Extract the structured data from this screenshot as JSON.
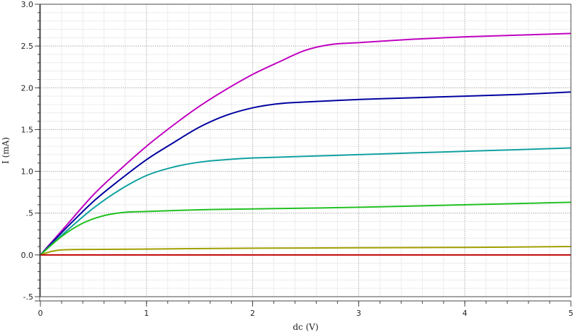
{
  "chart_data": {
    "type": "line",
    "title": "",
    "xlabel": "dc (V)",
    "ylabel": "I (mA)",
    "xlim": [
      0,
      5
    ],
    "ylim": [
      -0.5,
      3.0
    ],
    "grid": true,
    "x_ticks": [
      0,
      1,
      2,
      3,
      4,
      5
    ],
    "x_tick_labels": [
      "0",
      "1",
      "2",
      "3",
      "4",
      "5"
    ],
    "y_ticks": [
      -0.5,
      0.0,
      0.5,
      1.0,
      1.5,
      2.0,
      2.5,
      3.0
    ],
    "y_tick_labels": [
      "-.5",
      "0.0",
      ".5",
      "1.0",
      "1.5",
      "2.0",
      "2.5",
      "3.0"
    ],
    "series": [
      {
        "color": "#c000c0",
        "points": [
          [
            0,
            0
          ],
          [
            0.25,
            0.36
          ],
          [
            0.5,
            0.72
          ],
          [
            0.75,
            1.02
          ],
          [
            1.0,
            1.3
          ],
          [
            1.25,
            1.55
          ],
          [
            1.5,
            1.78
          ],
          [
            1.75,
            1.98
          ],
          [
            2.0,
            2.16
          ],
          [
            2.25,
            2.31
          ],
          [
            2.5,
            2.45
          ],
          [
            2.75,
            2.52
          ],
          [
            3.0,
            2.54
          ],
          [
            3.5,
            2.58
          ],
          [
            4.0,
            2.61
          ],
          [
            4.5,
            2.63
          ],
          [
            5.0,
            2.65
          ]
        ]
      },
      {
        "color": "#0000a0",
        "points": [
          [
            0,
            0
          ],
          [
            0.25,
            0.33
          ],
          [
            0.5,
            0.64
          ],
          [
            0.75,
            0.9
          ],
          [
            1.0,
            1.14
          ],
          [
            1.25,
            1.34
          ],
          [
            1.5,
            1.53
          ],
          [
            1.75,
            1.67
          ],
          [
            2.0,
            1.76
          ],
          [
            2.25,
            1.81
          ],
          [
            2.5,
            1.83
          ],
          [
            3.0,
            1.86
          ],
          [
            3.5,
            1.88
          ],
          [
            4.0,
            1.9
          ],
          [
            4.5,
            1.92
          ],
          [
            5.0,
            1.95
          ]
        ]
      },
      {
        "color": "#10a0a0",
        "points": [
          [
            0,
            0
          ],
          [
            0.25,
            0.29
          ],
          [
            0.5,
            0.56
          ],
          [
            0.75,
            0.78
          ],
          [
            1.0,
            0.95
          ],
          [
            1.25,
            1.05
          ],
          [
            1.5,
            1.11
          ],
          [
            1.75,
            1.14
          ],
          [
            2.0,
            1.16
          ],
          [
            2.5,
            1.18
          ],
          [
            3.0,
            1.2
          ],
          [
            3.5,
            1.22
          ],
          [
            4.0,
            1.24
          ],
          [
            4.5,
            1.26
          ],
          [
            5.0,
            1.28
          ]
        ]
      },
      {
        "color": "#20c020",
        "points": [
          [
            0,
            0
          ],
          [
            0.2,
            0.22
          ],
          [
            0.4,
            0.38
          ],
          [
            0.6,
            0.47
          ],
          [
            0.8,
            0.51
          ],
          [
            1.0,
            0.52
          ],
          [
            1.5,
            0.54
          ],
          [
            2.0,
            0.55
          ],
          [
            3.0,
            0.57
          ],
          [
            4.0,
            0.6
          ],
          [
            5.0,
            0.63
          ]
        ]
      },
      {
        "color": "#a0a000",
        "points": [
          [
            0,
            0
          ],
          [
            0.1,
            0.04
          ],
          [
            0.2,
            0.06
          ],
          [
            0.4,
            0.065
          ],
          [
            1.0,
            0.07
          ],
          [
            2.0,
            0.08
          ],
          [
            3.0,
            0.085
          ],
          [
            4.0,
            0.09
          ],
          [
            5.0,
            0.1
          ]
        ]
      },
      {
        "color": "#c00000",
        "points": [
          [
            0,
            0
          ],
          [
            5.0,
            0.0
          ]
        ]
      }
    ]
  }
}
